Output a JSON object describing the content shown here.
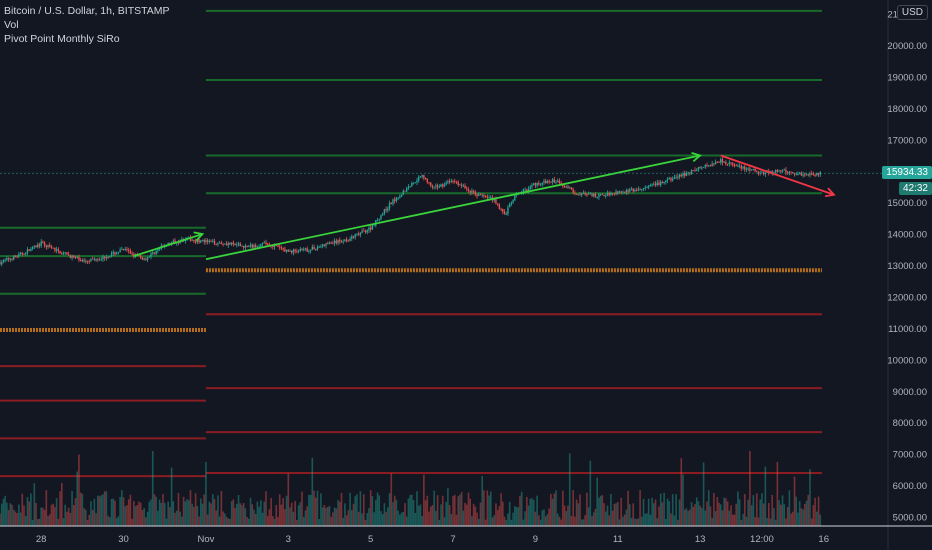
{
  "header": {
    "symbol_line": "Bitcoin / U.S. Dollar, 1h, BITSTAMP",
    "indicator_vol": "Vol",
    "indicator_pivot": "Pivot Point Monthly SiRo",
    "currency": "USD"
  },
  "last_price": {
    "value": "15934.33",
    "countdown": "42:32"
  },
  "colors": {
    "background": "#131722",
    "up": "#26a69a",
    "down": "#ef5350",
    "pivot_resistance": "#1a7f2e",
    "pivot_support": "#a11d22",
    "pivot_central": "#c8781a",
    "trend_up": "#39d43a",
    "trend_down": "#f23645"
  },
  "chart_data": {
    "type": "candlestick",
    "title": "Bitcoin / U.S. Dollar, 1h, BITSTAMP",
    "y_axis": {
      "ticks": [
        "21000.00",
        "20000.00",
        "19000.00",
        "18000.00",
        "17000.00",
        "16000.00",
        "15000.00",
        "14000.00",
        "13000.00",
        "12000.00",
        "11000.00",
        "10000.00",
        "9000.00",
        "8000.00",
        "7000.00",
        "6000.00",
        "5000.00"
      ],
      "range": [
        4800,
        21500
      ]
    },
    "x_axis": {
      "ticks": [
        "28",
        "30",
        "Nov",
        "3",
        "5",
        "7",
        "9",
        "11",
        "13",
        "12:00",
        "16"
      ],
      "range": [
        "2020-10-27 00:00",
        "2020-11-16 06:00"
      ]
    },
    "price_path": [
      [
        "2020-10-27 00:00",
        13100
      ],
      [
        "2020-10-27 12:00",
        13350
      ],
      [
        "2020-10-28 00:00",
        13700
      ],
      [
        "2020-10-28 12:00",
        13400
      ],
      [
        "2020-10-29 00:00",
        13150
      ],
      [
        "2020-10-29 12:00",
        13250
      ],
      [
        "2020-10-30 00:00",
        13500
      ],
      [
        "2020-10-30 12:00",
        13200
      ],
      [
        "2020-10-31 00:00",
        13650
      ],
      [
        "2020-10-31 12:00",
        13850
      ],
      [
        "2020-11-01 00:00",
        13750
      ],
      [
        "2020-11-01 12:00",
        13700
      ],
      [
        "2020-11-02 00:00",
        13600
      ],
      [
        "2020-11-02 12:00",
        13700
      ],
      [
        "2020-11-03 00:00",
        13450
      ],
      [
        "2020-11-03 12:00",
        13500
      ],
      [
        "2020-11-04 00:00",
        13700
      ],
      [
        "2020-11-04 12:00",
        13850
      ],
      [
        "2020-11-05 00:00",
        14200
      ],
      [
        "2020-11-05 12:00",
        15000
      ],
      [
        "2020-11-06 00:00",
        15600
      ],
      [
        "2020-11-06 06:00",
        15900
      ],
      [
        "2020-11-06 12:00",
        15450
      ],
      [
        "2020-11-07 00:00",
        15700
      ],
      [
        "2020-11-07 12:00",
        15300
      ],
      [
        "2020-11-08 00:00",
        15100
      ],
      [
        "2020-11-08 06:00",
        14600
      ],
      [
        "2020-11-08 12:00",
        15200
      ],
      [
        "2020-11-09 00:00",
        15600
      ],
      [
        "2020-11-09 12:00",
        15700
      ],
      [
        "2020-11-10 00:00",
        15300
      ],
      [
        "2020-11-10 12:00",
        15200
      ],
      [
        "2020-11-11 00:00",
        15350
      ],
      [
        "2020-11-11 12:00",
        15400
      ],
      [
        "2020-11-12 00:00",
        15600
      ],
      [
        "2020-11-12 12:00",
        15850
      ],
      [
        "2020-11-13 00:00",
        16100
      ],
      [
        "2020-11-13 12:00",
        16350
      ],
      [
        "2020-11-14 00:00",
        16100
      ],
      [
        "2020-11-14 12:00",
        15950
      ],
      [
        "2020-11-15 00:00",
        16000
      ],
      [
        "2020-11-15 12:00",
        15900
      ],
      [
        "2020-11-15 22:00",
        15934
      ]
    ],
    "pivot_levels": {
      "october": {
        "start": "2020-10-27 00:00",
        "end": "2020-11-01 00:00",
        "resistance": [
          14200,
          13300,
          12100
        ],
        "central": 10950,
        "support": [
          9800,
          8700,
          7500,
          6300
        ]
      },
      "november": {
        "start": "2020-11-01 00:00",
        "end": "2020-11-15 23:00",
        "resistance": [
          21100,
          18900,
          16500,
          15300
        ],
        "central": 12850,
        "support": [
          11450,
          9100,
          7700,
          6400
        ]
      }
    },
    "trend_lines": [
      {
        "from": [
          "2020-10-30 06:00",
          13300
        ],
        "to": [
          "2020-10-31 22:00",
          14000
        ],
        "direction": "up"
      },
      {
        "from": [
          "2020-11-01 00:00",
          13200
        ],
        "to": [
          "2020-11-13 00:00",
          16500
        ],
        "direction": "up"
      },
      {
        "from": [
          "2020-11-13 12:00",
          16500
        ],
        "to": [
          "2020-11-16 06:00",
          15250
        ],
        "direction": "down"
      }
    ],
    "volume": {
      "visible": true,
      "shown_as": "histogram at bottom of pane"
    },
    "grid": false
  }
}
